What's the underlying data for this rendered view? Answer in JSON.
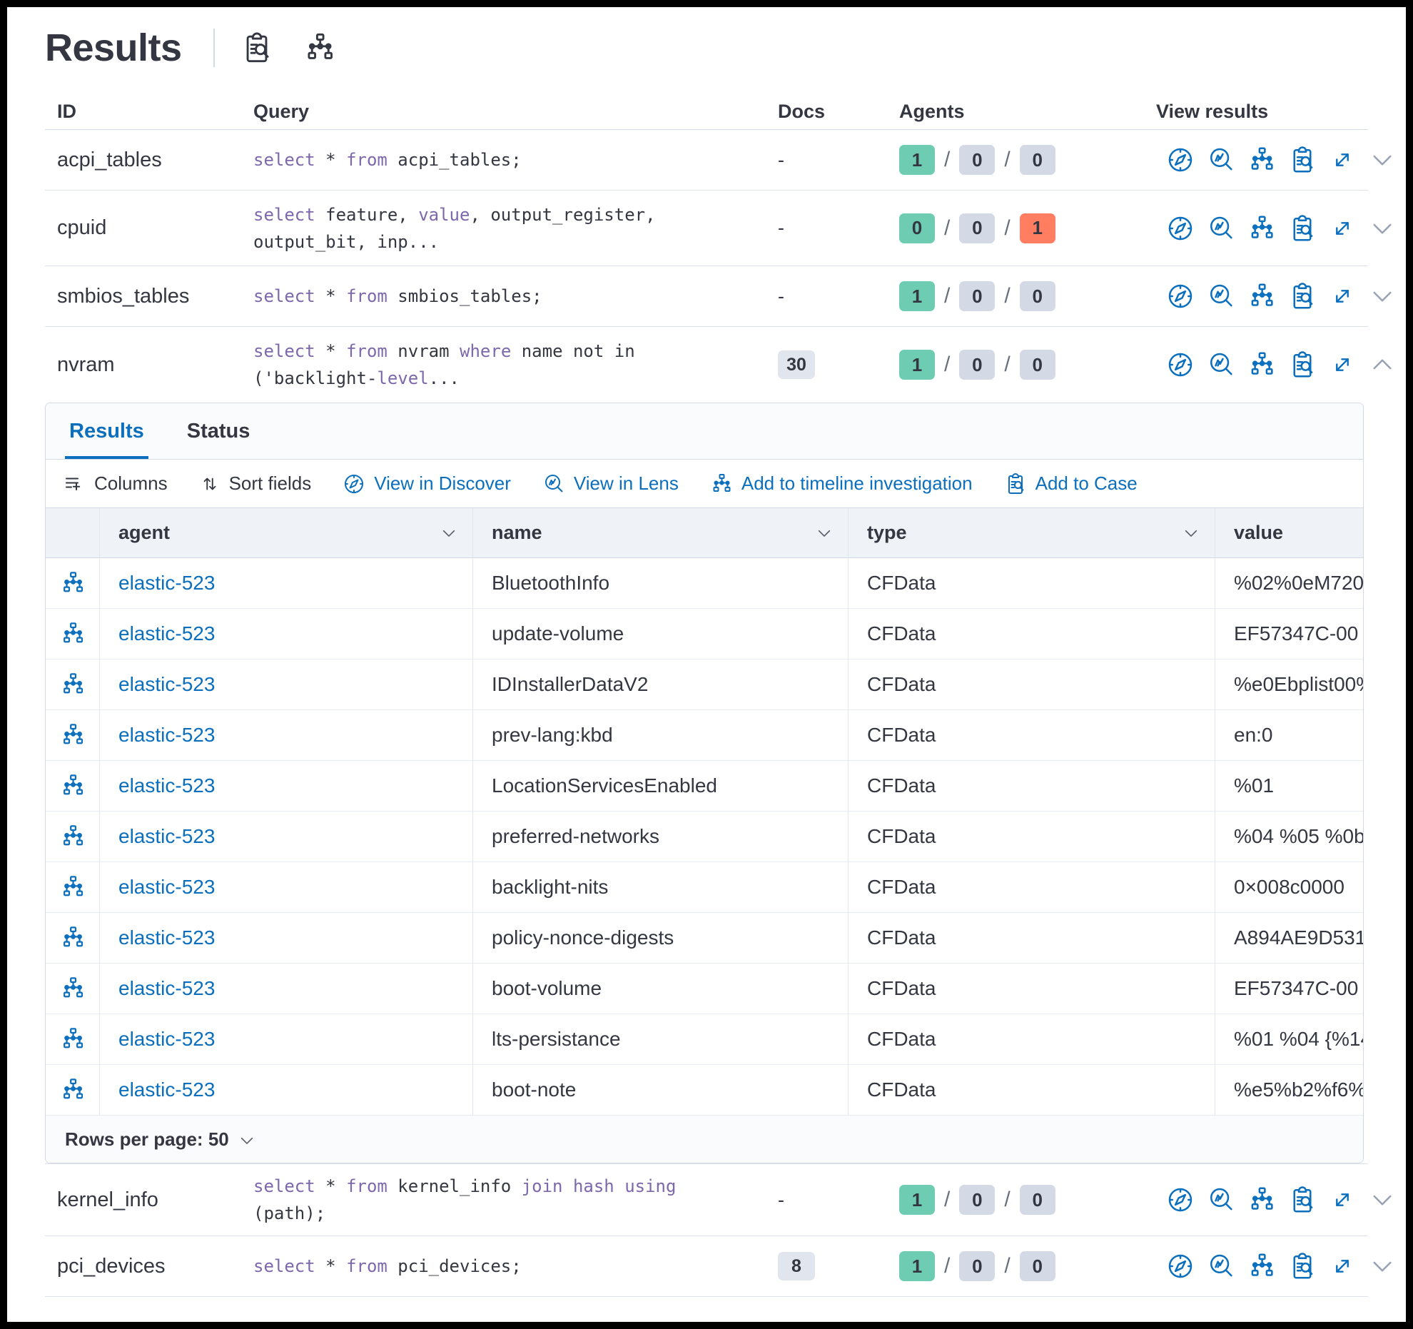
{
  "colors": {
    "primary": "#0B6FBE",
    "success": "#6DCCB1",
    "neutral": "#D3DAE6",
    "danger": "#FF7E62",
    "keyword": "#7D68AD"
  },
  "header": {
    "title": "Results"
  },
  "table": {
    "columns": {
      "id": "ID",
      "query": "Query",
      "docs": "Docs",
      "agents": "Agents",
      "view": "View results"
    },
    "rows": [
      {
        "id": "acpi_tables",
        "docs": "-",
        "query": [
          [
            "select",
            1
          ],
          [
            " * ",
            0
          ],
          [
            "from",
            1
          ],
          [
            " acpi_tables;",
            0
          ]
        ],
        "agents": [
          "1",
          "0",
          "0"
        ],
        "agent_variants": [
          "success",
          "neutral",
          "neutral"
        ],
        "expanded": false
      },
      {
        "id": "cpuid",
        "docs": "-",
        "query": [
          [
            "select",
            1
          ],
          [
            " feature, ",
            0
          ],
          [
            "value",
            1
          ],
          [
            ", output_register,\noutput_bit, inp...",
            0
          ]
        ],
        "agents": [
          "0",
          "0",
          "1"
        ],
        "agent_variants": [
          "success",
          "neutral",
          "danger"
        ],
        "expanded": false
      },
      {
        "id": "smbios_tables",
        "docs": "-",
        "query": [
          [
            "select",
            1
          ],
          [
            " * ",
            0
          ],
          [
            "from",
            1
          ],
          [
            " smbios_tables;",
            0
          ]
        ],
        "agents": [
          "1",
          "0",
          "0"
        ],
        "agent_variants": [
          "success",
          "neutral",
          "neutral"
        ],
        "expanded": false
      },
      {
        "id": "nvram",
        "docs_badge": "30",
        "query": [
          [
            "select",
            1
          ],
          [
            " * ",
            0
          ],
          [
            "from",
            1
          ],
          [
            " nvram ",
            0
          ],
          [
            "where",
            1
          ],
          [
            " name not in\n('backlight-",
            0
          ],
          [
            "level",
            1
          ],
          [
            "...",
            0
          ]
        ],
        "agents": [
          "1",
          "0",
          "0"
        ],
        "agent_variants": [
          "success",
          "neutral",
          "neutral"
        ],
        "expanded": true
      },
      {
        "id": "kernel_info",
        "docs": "-",
        "query": [
          [
            "select",
            1
          ],
          [
            " * ",
            0
          ],
          [
            "from",
            1
          ],
          [
            " kernel_info ",
            0
          ],
          [
            "join",
            1
          ],
          [
            " ",
            0
          ],
          [
            "hash",
            1
          ],
          [
            " ",
            0
          ],
          [
            "using",
            1
          ],
          [
            " (path);",
            0
          ]
        ],
        "agents": [
          "1",
          "0",
          "0"
        ],
        "agent_variants": [
          "success",
          "neutral",
          "neutral"
        ],
        "expanded": false
      },
      {
        "id": "pci_devices",
        "docs_badge": "8",
        "query": [
          [
            "select",
            1
          ],
          [
            " * ",
            0
          ],
          [
            "from",
            1
          ],
          [
            " pci_devices;",
            0
          ]
        ],
        "agents": [
          "1",
          "0",
          "0"
        ],
        "agent_variants": [
          "success",
          "neutral",
          "neutral"
        ],
        "expanded": false
      }
    ]
  },
  "panel": {
    "tabs": {
      "results": "Results",
      "status": "Status"
    },
    "toolbar": {
      "columns": "Columns",
      "sort_fields": "Sort fields",
      "view_in_discover": "View in Discover",
      "view_in_lens": "View in Lens",
      "add_to_timeline": "Add to timeline investigation",
      "add_to_case": "Add to Case"
    },
    "grid": {
      "columns": {
        "agent": "agent",
        "name": "name",
        "type": "type",
        "value": "value"
      },
      "rows": [
        {
          "agent": "elastic-523",
          "name": "BluetoothInfo",
          "type": "CFData",
          "value": "%02%0eM720"
        },
        {
          "agent": "elastic-523",
          "name": "update-volume",
          "type": "CFData",
          "value": "EF57347C-00"
        },
        {
          "agent": "elastic-523",
          "name": "IDInstallerDataV2",
          "type": "CFData",
          "value": "%e0Ebplist00%"
        },
        {
          "agent": "elastic-523",
          "name": "prev-lang:kbd",
          "type": "CFData",
          "value": "en:0"
        },
        {
          "agent": "elastic-523",
          "name": "LocationServicesEnabled",
          "type": "CFData",
          "value": "%01"
        },
        {
          "agent": "elastic-523",
          "name": "preferred-networks",
          "type": "CFData",
          "value": "%04 %05 %0b"
        },
        {
          "agent": "elastic-523",
          "name": "backlight-nits",
          "type": "CFData",
          "value": "0×008c0000"
        },
        {
          "agent": "elastic-523",
          "name": "policy-nonce-digests",
          "type": "CFData",
          "value": "A894AE9D531"
        },
        {
          "agent": "elastic-523",
          "name": "boot-volume",
          "type": "CFData",
          "value": "EF57347C-00"
        },
        {
          "agent": "elastic-523",
          "name": "lts-persistance",
          "type": "CFData",
          "value": "%01 %04 {%14"
        },
        {
          "agent": "elastic-523",
          "name": "boot-note",
          "type": "CFData",
          "value": "%e5%b2%f6%"
        }
      ]
    },
    "footer": {
      "rows_per_page": "Rows per page: 50"
    }
  }
}
